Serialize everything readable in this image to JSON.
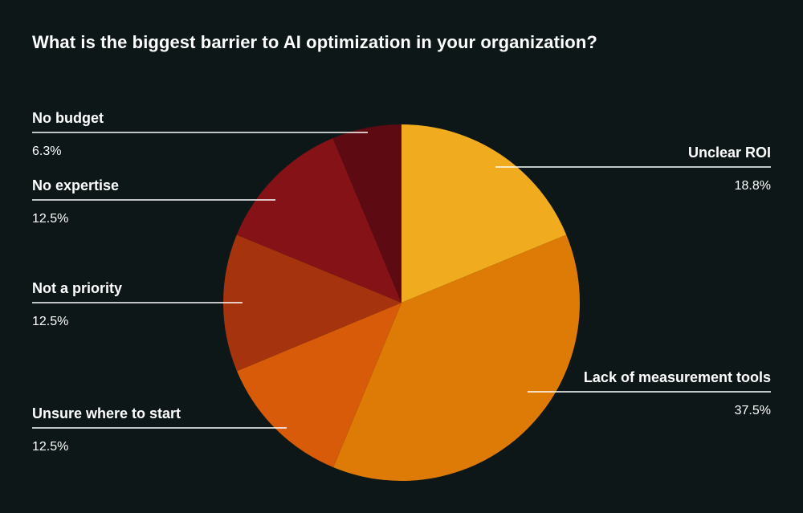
{
  "chart_data": {
    "type": "pie",
    "title": "What is the biggest barrier to AI optimization in your organization?",
    "start_angle_deg": 0,
    "direction": "clockwise",
    "legend": "leader-line labels",
    "slices": [
      {
        "label": "Unclear ROI",
        "value": 18.8,
        "value_label": "18.8%",
        "color": "#f0ab1e"
      },
      {
        "label": "Lack of measurement tools",
        "value": 37.5,
        "value_label": "37.5%",
        "color": "#de7b06"
      },
      {
        "label": "Unsure where to start",
        "value": 12.5,
        "value_label": "12.5%",
        "color": "#d75b08"
      },
      {
        "label": "Not a priority",
        "value": 12.5,
        "value_label": "12.5%",
        "color": "#a4330e"
      },
      {
        "label": "No expertise",
        "value": 12.5,
        "value_label": "12.5%",
        "color": "#841216"
      },
      {
        "label": "No budget",
        "value": 6.3,
        "value_label": "6.3%",
        "color": "#5e0a12"
      }
    ]
  },
  "colors": {
    "background": "#0d1717",
    "text": "#ffffff",
    "leader_line": "#ffffff"
  }
}
